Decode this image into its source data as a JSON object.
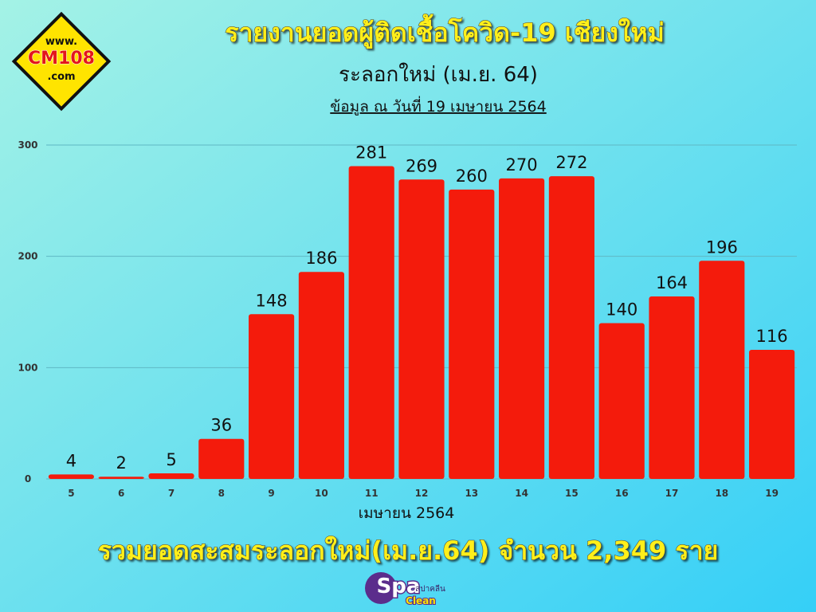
{
  "chart_data": {
    "type": "bar",
    "title": "รายงานยอดผู้ติดเชื้อโควิด-19 เชียงใหม่",
    "subtitle": "ระลอกใหม่ (เม.ย. 64)",
    "note": "ข้อมูล ณ วันที่ 19 เมษายน 2564",
    "x_label": "เมษายน 2564",
    "footer": "รวมยอดสะสมระลอกใหม่(เม.ย.64) จำนวน 2,349 ราย",
    "categories": [
      "5",
      "6",
      "7",
      "8",
      "9",
      "10",
      "11",
      "12",
      "13",
      "14",
      "15",
      "16",
      "17",
      "18",
      "19"
    ],
    "values": [
      4,
      2,
      5,
      36,
      148,
      186,
      281,
      269,
      260,
      270,
      272,
      140,
      164,
      196,
      116
    ],
    "color": "#f41b0c",
    "ylim": [
      0,
      300
    ],
    "yticks": [
      0,
      100,
      200,
      300
    ],
    "grid": true
  },
  "logos": {
    "cm108": [
      "www.",
      "CM108",
      ".com"
    ],
    "spa": [
      "Spa",
      "สปาคลีน",
      "Clean"
    ]
  }
}
